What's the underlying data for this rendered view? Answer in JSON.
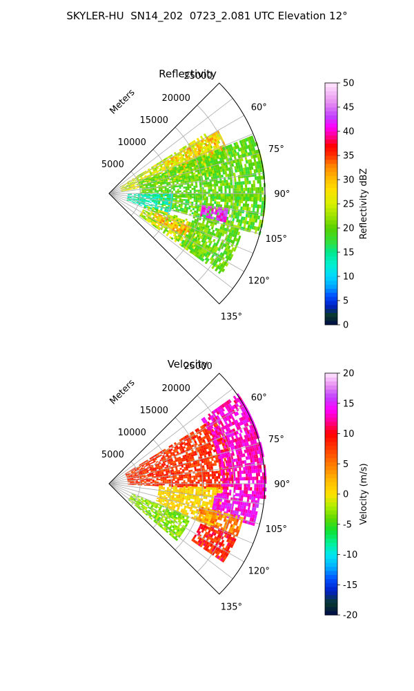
{
  "figure": {
    "title": "SKYLER-HU  SN14_202  0723_2.081 UTC Elevation 12°"
  },
  "chart_data": [
    {
      "type": "heatmap",
      "title": "Reflectivity",
      "projection": "polar-sector",
      "r_label": "Meters",
      "r_ticks": [
        5000,
        10000,
        15000,
        20000,
        25000
      ],
      "r_tick_labels": [
        "5000",
        "10000",
        "15000",
        "20000",
        "25000"
      ],
      "r_max": 25000,
      "theta_range_deg": [
        45,
        135
      ],
      "theta_ticks_deg": [
        60,
        75,
        90,
        105,
        120,
        135
      ],
      "theta_tick_labels": [
        "60°",
        "75°",
        "90°",
        "105°",
        "120°",
        "135°"
      ],
      "grid": true,
      "colorbar": {
        "label": "Reflectivity dBZ",
        "vmin": 0,
        "vmax": 50,
        "ticks": [
          0,
          5,
          10,
          15,
          20,
          25,
          30,
          35,
          40,
          45,
          50
        ],
        "tick_labels": [
          "0",
          "5",
          "10",
          "15",
          "20",
          "25",
          "30",
          "35",
          "40",
          "45",
          "50"
        ],
        "stops": [
          [
            0,
            "#000a4b"
          ],
          [
            2,
            "#0a3a2a"
          ],
          [
            4,
            "#0020c8"
          ],
          [
            6,
            "#0050ff"
          ],
          [
            8,
            "#00a8ff"
          ],
          [
            10,
            "#00d8ff"
          ],
          [
            12.5,
            "#00f0d0"
          ],
          [
            15,
            "#00e890"
          ],
          [
            17,
            "#30e040"
          ],
          [
            20,
            "#55d000"
          ],
          [
            22,
            "#90e000"
          ],
          [
            25,
            "#d8f000"
          ],
          [
            28,
            "#ffe000"
          ],
          [
            30,
            "#ffc000"
          ],
          [
            33,
            "#ff8000"
          ],
          [
            35,
            "#ff3000"
          ],
          [
            37,
            "#ff0000"
          ],
          [
            39,
            "#ff0090"
          ],
          [
            41,
            "#ff00ff"
          ],
          [
            43,
            "#c040ff"
          ],
          [
            46,
            "#e890f0"
          ],
          [
            50,
            "#ffe8ff"
          ]
        ]
      },
      "echo_cells": [
        {
          "r_range": [
            2000,
            18000
          ],
          "theta_range": [
            58,
            80
          ],
          "value": 25,
          "spread": 4
        },
        {
          "r_range": [
            10000,
            20000
          ],
          "theta_range": [
            60,
            72
          ],
          "value": 28,
          "spread": 5
        },
        {
          "r_range": [
            5000,
            25000
          ],
          "theta_range": [
            68,
            92
          ],
          "value": 20,
          "spread": 3
        },
        {
          "r_range": [
            8000,
            25000
          ],
          "theta_range": [
            90,
            105
          ],
          "value": 20,
          "spread": 4
        },
        {
          "r_range": [
            3000,
            10000
          ],
          "theta_range": [
            90,
            110
          ],
          "value": 14,
          "spread": 3
        },
        {
          "r_range": [
            15000,
            19000
          ],
          "theta_range": [
            97,
            104
          ],
          "value": 42,
          "spread": 3
        },
        {
          "r_range": [
            6000,
            16000
          ],
          "theta_range": [
            108,
            126
          ],
          "value": 24,
          "spread": 5
        },
        {
          "r_range": [
            8000,
            14000
          ],
          "theta_range": [
            112,
            120
          ],
          "value": 30,
          "spread": 4
        },
        {
          "r_range": [
            14000,
            22000
          ],
          "theta_range": [
            105,
            125
          ],
          "value": 20,
          "spread": 3
        }
      ]
    },
    {
      "type": "heatmap",
      "title": "Velocity",
      "projection": "polar-sector",
      "r_label": "Meters",
      "r_ticks": [
        5000,
        10000,
        15000,
        20000,
        25000
      ],
      "r_tick_labels": [
        "5000",
        "10000",
        "15000",
        "20000",
        "25000"
      ],
      "r_max": 25000,
      "theta_range_deg": [
        45,
        135
      ],
      "theta_ticks_deg": [
        60,
        75,
        90,
        105,
        120,
        135
      ],
      "theta_tick_labels": [
        "60°",
        "75°",
        "90°",
        "105°",
        "120°",
        "135°"
      ],
      "grid": true,
      "colorbar": {
        "label": "Velocity (m/s)",
        "vmin": -20,
        "vmax": 20,
        "ticks": [
          -20,
          -15,
          -10,
          -5,
          0,
          5,
          10,
          15,
          20
        ],
        "tick_labels": [
          "-20",
          "-15",
          "-10",
          "-5",
          "0",
          "5",
          "10",
          "15",
          "20"
        ],
        "stops": [
          [
            -20,
            "#000a4b"
          ],
          [
            -18,
            "#0a3a2a"
          ],
          [
            -16,
            "#0020c8"
          ],
          [
            -14,
            "#0050ff"
          ],
          [
            -12,
            "#00b0ff"
          ],
          [
            -10,
            "#00e8f0"
          ],
          [
            -8,
            "#00f090"
          ],
          [
            -6,
            "#10e030"
          ],
          [
            -4,
            "#60d800"
          ],
          [
            -2,
            "#b0f000"
          ],
          [
            0,
            "#ffe000"
          ],
          [
            2,
            "#ffc000"
          ],
          [
            4,
            "#ff9000"
          ],
          [
            6,
            "#ff6000"
          ],
          [
            8,
            "#ff3000"
          ],
          [
            10,
            "#ff0000"
          ],
          [
            12,
            "#ff0090"
          ],
          [
            14,
            "#ff00ff"
          ],
          [
            16,
            "#c040ff"
          ],
          [
            18,
            "#e890f0"
          ],
          [
            20,
            "#ffe8ff"
          ]
        ]
      },
      "echo_cells": [
        {
          "r_range": [
            3000,
            20000
          ],
          "theta_range": [
            58,
            92
          ],
          "value": 8,
          "spread": 2
        },
        {
          "r_range": [
            18000,
            25000
          ],
          "theta_range": [
            55,
            95
          ],
          "value": 13,
          "spread": 2
        },
        {
          "r_range": [
            8000,
            18000
          ],
          "theta_range": [
            92,
            112
          ],
          "value": 1,
          "spread": 2
        },
        {
          "r_range": [
            17000,
            24000
          ],
          "theta_range": [
            95,
            105
          ],
          "value": 14,
          "spread": 2
        },
        {
          "r_range": [
            15000,
            22000
          ],
          "theta_range": [
            104,
            112
          ],
          "value": 4,
          "spread": 3
        },
        {
          "r_range": [
            4000,
            14000
          ],
          "theta_range": [
            112,
            130
          ],
          "value": -3,
          "spread": 2
        },
        {
          "r_range": [
            16000,
            22000
          ],
          "theta_range": [
            112,
            124
          ],
          "value": 9,
          "spread": 3
        }
      ]
    }
  ]
}
